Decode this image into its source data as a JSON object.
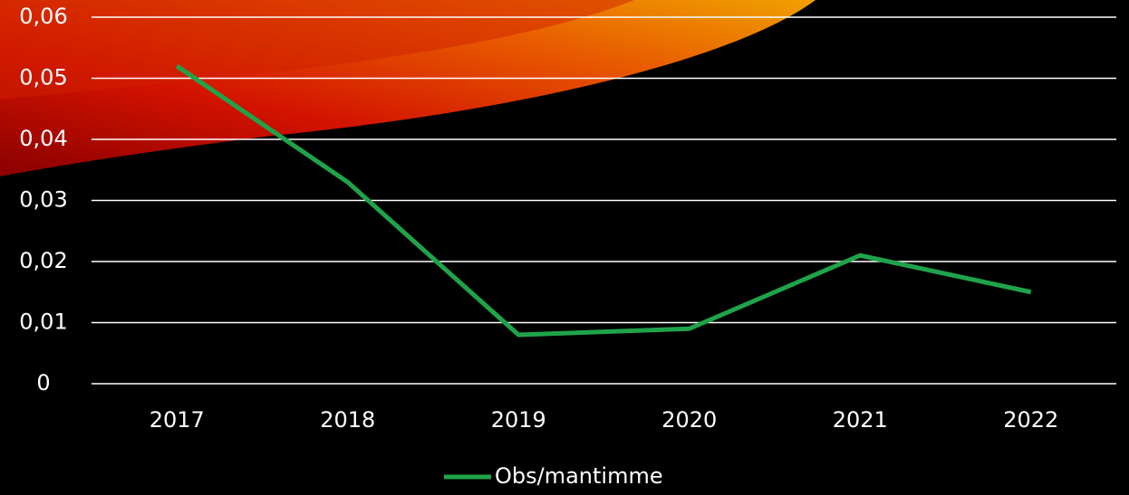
{
  "chart_data": {
    "type": "line",
    "categories": [
      "2017",
      "2018",
      "2019",
      "2020",
      "2021",
      "2022"
    ],
    "series": [
      {
        "name": "Obs/mantimme",
        "color": "#1fa34a",
        "values": [
          0.052,
          0.033,
          0.008,
          0.009,
          0.021,
          0.015
        ]
      }
    ],
    "ylim": [
      0,
      0.06
    ],
    "yticks": [
      0,
      {
        "value": 0.01,
        "label": "0,01"
      },
      {
        "value": 0.02,
        "label": "0,02"
      },
      {
        "value": 0.03,
        "label": "0,03"
      },
      {
        "value": 0.04,
        "label": "0,04"
      },
      {
        "value": 0.05,
        "label": "0,05"
      },
      {
        "value": 0.06,
        "label": "0,06"
      }
    ],
    "grid": true,
    "legend": "bottom"
  }
}
